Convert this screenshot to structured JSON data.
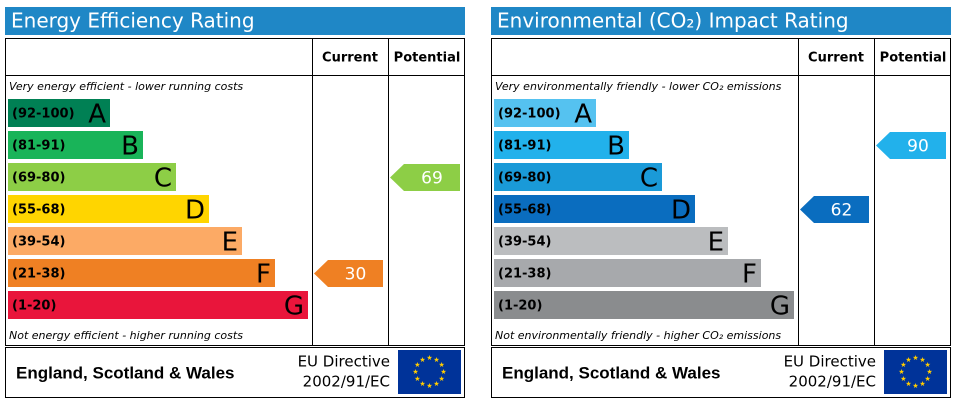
{
  "panels": [
    {
      "title": "Energy Efficiency Rating",
      "col_current": "Current",
      "col_potential": "Potential",
      "top_text": "Very energy efficient - lower running costs",
      "bottom_text": "Not energy efficient - higher running costs",
      "bands": [
        {
          "range": "(92-100)",
          "letter": "A",
          "color": "#008054"
        },
        {
          "range": "(81-91)",
          "letter": "B",
          "color": "#19b459"
        },
        {
          "range": "(69-80)",
          "letter": "C",
          "color": "#8dce46"
        },
        {
          "range": "(55-68)",
          "letter": "D",
          "color": "#ffd500"
        },
        {
          "range": "(39-54)",
          "letter": "E",
          "color": "#fcaa65"
        },
        {
          "range": "(21-38)",
          "letter": "F",
          "color": "#ef8023"
        },
        {
          "range": "(1-20)",
          "letter": "G",
          "color": "#e9153b"
        }
      ],
      "current": 30,
      "potential": 69,
      "footer": {
        "region": "England, Scotland & Wales",
        "directive_line1": "EU Directive",
        "directive_line2": "2002/91/EC"
      }
    },
    {
      "title": "Environmental (CO₂) Impact Rating",
      "col_current": "Current",
      "col_potential": "Potential",
      "top_text": "Very environmentally friendly - lower CO₂ emissions",
      "bottom_text": "Not environmentally friendly - higher CO₂ emissions",
      "bands": [
        {
          "range": "(92-100)",
          "letter": "A",
          "color": "#55c2f0"
        },
        {
          "range": "(81-91)",
          "letter": "B",
          "color": "#22b1eb"
        },
        {
          "range": "(69-80)",
          "letter": "C",
          "color": "#1a9ad8"
        },
        {
          "range": "(55-68)",
          "letter": "D",
          "color": "#0a6dbf"
        },
        {
          "range": "(39-54)",
          "letter": "E",
          "color": "#bbbdbf"
        },
        {
          "range": "(21-38)",
          "letter": "F",
          "color": "#a7a9ac"
        },
        {
          "range": "(1-20)",
          "letter": "G",
          "color": "#8a8c8e"
        }
      ],
      "current": 62,
      "potential": 90,
      "footer": {
        "region": "England, Scotland & Wales",
        "directive_line1": "EU Directive",
        "directive_line2": "2002/91/EC"
      }
    }
  ]
}
